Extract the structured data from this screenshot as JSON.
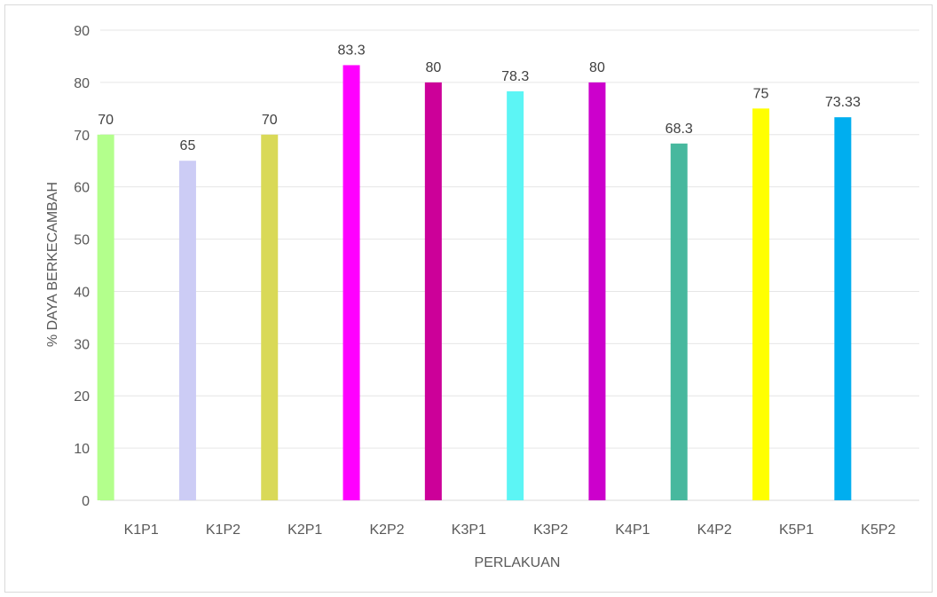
{
  "chart_data": {
    "type": "bar",
    "categories": [
      "K1P1",
      "K1P2",
      "K2P1",
      "K2P2",
      "K3P1",
      "K3P2",
      "K4P1",
      "K4P2",
      "K5P1",
      "K5P2"
    ],
    "values": [
      70,
      65,
      70,
      83.3,
      80,
      78.3,
      80,
      68.3,
      75,
      73.33
    ],
    "data_labels": [
      "70",
      "65",
      "70",
      "83.3",
      "80",
      "78.3",
      "80",
      "68.3",
      "75",
      "73.33"
    ],
    "bar_colors": [
      "#b3ff8c",
      "#ccccf5",
      "#d9d957",
      "#ff00ff",
      "#cc0099",
      "#5cf5f5",
      "#cc00cc",
      "#47b89e",
      "#ffff00",
      "#00aeef"
    ],
    "xlabel": "PERLAKUAN",
    "ylabel": "% DAYA BERKECAMBAH",
    "ylim": [
      0,
      90
    ],
    "yticks": [
      0,
      10,
      20,
      30,
      40,
      50,
      60,
      70,
      80,
      90
    ],
    "grid": true,
    "legend": "none"
  }
}
